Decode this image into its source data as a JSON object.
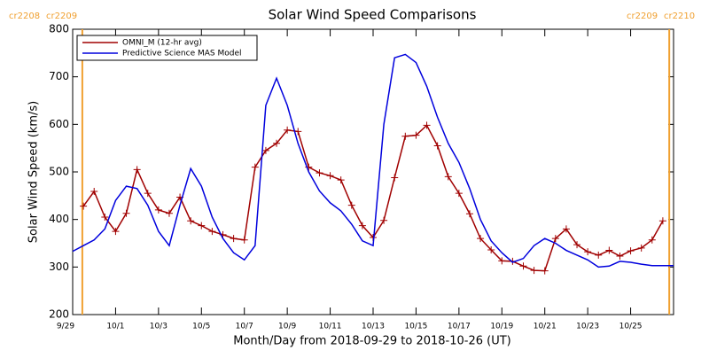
{
  "chart_data": {
    "type": "line",
    "title": "Solar Wind Speed Comparisons",
    "x_label": "Month/Day from 2018-09-29 to 2018-10-26 (UT)",
    "y_label": "Solar Wind Speed (km/s)",
    "xlim": [
      0,
      28
    ],
    "ylim": [
      200,
      800
    ],
    "yticks": [
      200,
      300,
      400,
      500,
      600,
      700,
      800
    ],
    "xticks": [
      {
        "value": 0,
        "label": "9/29"
      },
      {
        "value": 2,
        "label": "10/1"
      },
      {
        "value": 4,
        "label": "10/3"
      },
      {
        "value": 6,
        "label": "10/5"
      },
      {
        "value": 8,
        "label": "10/7"
      },
      {
        "value": 10,
        "label": "10/9"
      },
      {
        "value": 12,
        "label": "10/11"
      },
      {
        "value": 14,
        "label": "10/13"
      },
      {
        "value": 16,
        "label": "10/15"
      },
      {
        "value": 18,
        "label": "10/17"
      },
      {
        "value": 20,
        "label": "10/19"
      },
      {
        "value": 22,
        "label": "10/21"
      },
      {
        "value": 24,
        "label": "10/23"
      },
      {
        "value": 26,
        "label": "10/25"
      }
    ],
    "series": [
      {
        "name": "OMNI_M (12-hr avg)",
        "color": "#a00000",
        "markers": true,
        "x": [
          0.5,
          1,
          1.5,
          2,
          2.5,
          3,
          3.5,
          4,
          4.5,
          5,
          5.5,
          6,
          6.5,
          7,
          7.5,
          8,
          8.5,
          9,
          9.5,
          10,
          10.5,
          11,
          11.5,
          12,
          12.5,
          13,
          13.5,
          14,
          14.5,
          15,
          15.5,
          16,
          16.5,
          17,
          17.5,
          18,
          18.5,
          19,
          19.5,
          20,
          20.5,
          21,
          21.5,
          22,
          22.5,
          23,
          23.5,
          24,
          24.5,
          25,
          25.5,
          26,
          26.5,
          27,
          27.5
        ],
        "values": [
          428,
          459,
          405,
          375,
          413,
          505,
          455,
          420,
          413,
          447,
          397,
          387,
          375,
          368,
          360,
          357,
          510,
          545,
          560,
          588,
          585,
          510,
          498,
          492,
          483,
          430,
          387,
          362,
          398,
          488,
          575,
          577,
          598,
          555,
          490,
          455,
          412,
          360,
          336,
          313,
          312,
          302,
          293,
          292,
          360,
          380,
          347,
          332,
          325,
          335,
          323,
          334,
          340,
          357,
          397
        ]
      },
      {
        "name": "Predictive Science MAS Model",
        "color": "#0000dd",
        "markers": false,
        "x": [
          0,
          0.5,
          1,
          1.5,
          2,
          2.5,
          3,
          3.5,
          4,
          4.5,
          5,
          5.5,
          6,
          6.5,
          7,
          7.5,
          8,
          8.5,
          9,
          9.5,
          10,
          10.5,
          11,
          11.5,
          12,
          12.5,
          13,
          13.5,
          14,
          14.5,
          15,
          15.5,
          16,
          16.5,
          17,
          17.5,
          18,
          18.5,
          19,
          19.5,
          20,
          20.5,
          21,
          21.5,
          22,
          22.5,
          23,
          23.5,
          24,
          24.5,
          25,
          25.5,
          26,
          26.5,
          27,
          27.5,
          28
        ],
        "values": [
          333,
          345,
          357,
          380,
          440,
          470,
          465,
          430,
          375,
          345,
          430,
          507,
          470,
          405,
          360,
          330,
          315,
          345,
          640,
          697,
          640,
          560,
          500,
          460,
          435,
          418,
          390,
          355,
          345,
          600,
          740,
          747,
          730,
          680,
          615,
          560,
          520,
          465,
          400,
          355,
          330,
          310,
          318,
          345,
          360,
          350,
          335,
          325,
          315,
          300,
          302,
          312,
          310,
          306,
          303,
          303,
          303
        ]
      }
    ],
    "carrington": [
      {
        "x": 0.45,
        "labels": [
          "cr2208",
          "cr2209"
        ]
      },
      {
        "x": 27.8,
        "labels": [
          "cr2209",
          "cr2210"
        ]
      }
    ],
    "carrington_color": "#f0a030",
    "legend": "upper left"
  }
}
